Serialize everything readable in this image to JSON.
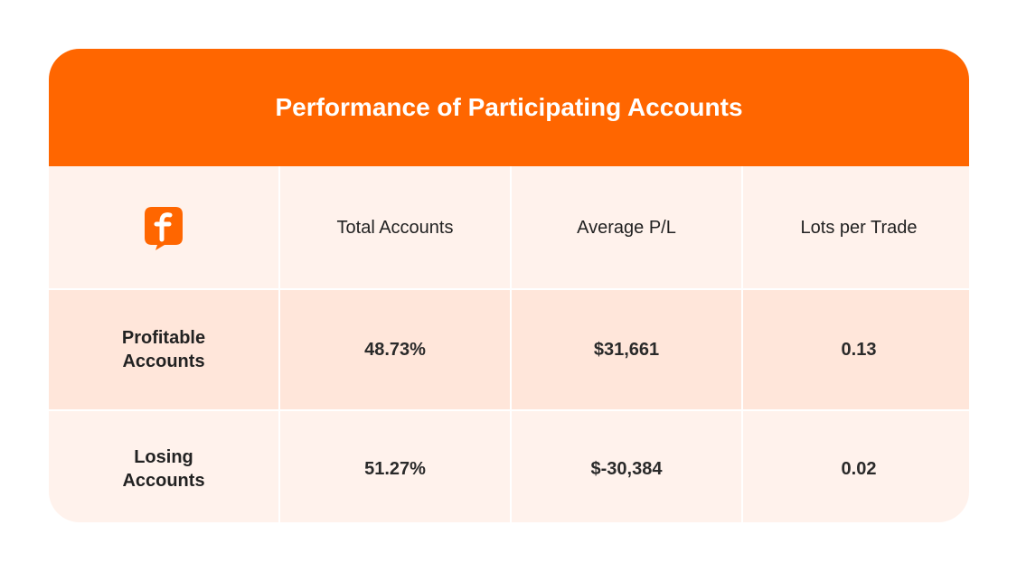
{
  "table": {
    "title": "Performance of Participating Accounts",
    "header": [
      "Total Accounts",
      "Average P/L",
      "Lots per Trade"
    ],
    "rows": [
      [
        "Profitable Accounts",
        "48.73%",
        "$31,661",
        "0.13"
      ],
      [
        "Losing Accounts",
        "51.27%",
        "$-30,384",
        "0.02"
      ]
    ]
  }
}
